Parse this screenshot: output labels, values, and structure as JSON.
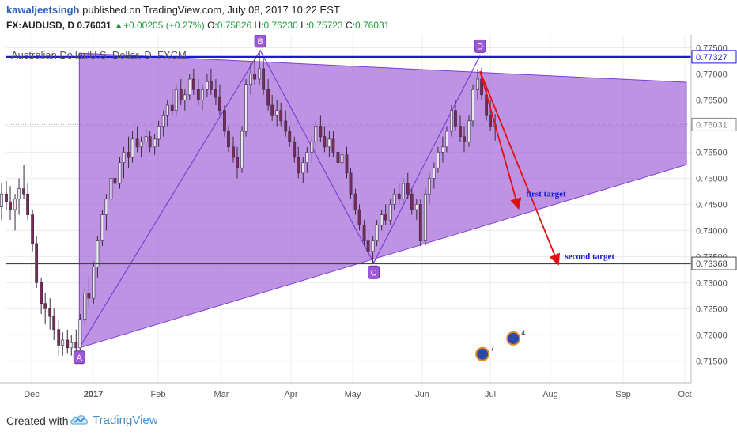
{
  "header": {
    "username": "kawaljeetsingh",
    "published": "published on TradingView.com, July 08, 2017 10:22 EST",
    "symbol": "FX:AUDUSD, D",
    "last_price": "0.76031",
    "change_icon": "up-triangle-icon",
    "change": "+0.00205 (+0.27%)",
    "o_label": "O:",
    "o_value": "0.75826",
    "h_label": "H:",
    "h_value": "0.76230",
    "l_label": "L:",
    "l_value": "0.75723",
    "c_label": "C:",
    "c_value": "0.76031"
  },
  "footer": {
    "created_with": "Created with",
    "brand": "TradingView",
    "logo_icon": "tradingview-cloud-icon"
  },
  "chart_data": {
    "type": "candlestick",
    "title": "Australian Dollar/U.S. Dollar, D, FXCM",
    "x_tick_labels": [
      "Dec",
      "2017",
      "Feb",
      "Mar",
      "Apr",
      "May",
      "Jun",
      "Jul",
      "Aug",
      "Sep",
      "Oct"
    ],
    "y_tick_labels": [
      "0.77500",
      "0.77000",
      "0.76500",
      "0.76000",
      "0.75500",
      "0.75000",
      "0.74500",
      "0.74000",
      "0.73500",
      "0.73000",
      "0.72500",
      "0.72000",
      "0.71500"
    ],
    "y_ticks": [
      0.775,
      0.77,
      0.765,
      0.76,
      0.755,
      0.75,
      0.745,
      0.74,
      0.735,
      0.73,
      0.725,
      0.72,
      0.715
    ],
    "ylim": [
      0.7108,
      0.7775
    ],
    "grid": true,
    "colors": {
      "up": "#e8e8f0",
      "down": "#7a2a58",
      "wick": "#3a2a40",
      "pattern_fill": "#9b59d6",
      "pattern_line": "#7d3fd4",
      "hline_top": "#1a1ad4",
      "hline_bottom": "#444444",
      "arrow": "#e01010",
      "label_text": "#1a1ad4",
      "last_price_line": "#aaaaaa"
    },
    "price_labels": [
      {
        "value": 0.77327,
        "text": "0.77327",
        "color": "#1a1ad4"
      },
      {
        "value": 0.76031,
        "text": "0.76031",
        "color": "#888888"
      },
      {
        "value": 0.73368,
        "text": "0.73368",
        "color": "#444444"
      }
    ],
    "horizontal_lines": [
      {
        "value": 0.77327,
        "color": "#1a1ad4"
      },
      {
        "value": 0.73368,
        "color": "#444444"
      }
    ],
    "abcd_points": [
      {
        "label": "A",
        "t": 2016.985,
        "price": 0.7175
      },
      {
        "label": "B",
        "t": 2017.213,
        "price": 0.7745
      },
      {
        "label": "C",
        "t": 2017.356,
        "price": 0.7338
      },
      {
        "label": "D",
        "t": 2017.49,
        "price": 0.7735
      }
    ],
    "pattern_triangle": [
      {
        "t": 2016.985,
        "price": 0.774
      },
      {
        "t": 2017.75,
        "price": 0.7684
      },
      {
        "t": 2017.75,
        "price": 0.7526
      },
      {
        "t": 2016.985,
        "price": 0.7175
      }
    ],
    "arrows": [
      {
        "from_t": 2017.49,
        "from_price": 0.7705,
        "to_t": 2017.538,
        "to_price": 0.7445
      },
      {
        "from_t": 2017.49,
        "from_price": 0.7705,
        "to_t": 2017.588,
        "to_price": 0.7338
      }
    ],
    "annotations": [
      {
        "text": "first target",
        "t": 2017.548,
        "price": 0.7465
      },
      {
        "text": "second target",
        "t": 2017.597,
        "price": 0.7345
      }
    ],
    "events": [
      {
        "icon": "calendar-event-icon",
        "text": "4",
        "t": 2017.532,
        "price": 0.7193
      },
      {
        "icon": "flag-event-icon",
        "text": "7",
        "t": 2017.493,
        "price": 0.7163
      }
    ],
    "candles_note": "daily candles Nov 2016 - Jul 2017",
    "candles": [
      {
        "t": 2016.838,
        "o": 0.73,
        "h": 0.7345,
        "l": 0.726,
        "c": 0.733
      },
      {
        "t": 2016.843,
        "o": 0.733,
        "h": 0.7395,
        "l": 0.731,
        "c": 0.738
      },
      {
        "t": 2016.849,
        "o": 0.738,
        "h": 0.742,
        "l": 0.735,
        "c": 0.74
      },
      {
        "t": 2016.854,
        "o": 0.74,
        "h": 0.743,
        "l": 0.736,
        "c": 0.7375
      },
      {
        "t": 2016.86,
        "o": 0.7375,
        "h": 0.746,
        "l": 0.7365,
        "c": 0.745
      },
      {
        "t": 2016.865,
        "o": 0.745,
        "h": 0.748,
        "l": 0.741,
        "c": 0.743
      },
      {
        "t": 2016.871,
        "o": 0.743,
        "h": 0.7495,
        "l": 0.742,
        "c": 0.748
      },
      {
        "t": 2016.876,
        "o": 0.748,
        "h": 0.75,
        "l": 0.744,
        "c": 0.746
      },
      {
        "t": 2016.882,
        "o": 0.746,
        "h": 0.75,
        "l": 0.743,
        "c": 0.7445
      },
      {
        "t": 2016.887,
        "o": 0.7445,
        "h": 0.749,
        "l": 0.742,
        "c": 0.747
      },
      {
        "t": 2016.893,
        "o": 0.747,
        "h": 0.7495,
        "l": 0.744,
        "c": 0.7455
      },
      {
        "t": 2016.898,
        "o": 0.7455,
        "h": 0.7485,
        "l": 0.742,
        "c": 0.744
      },
      {
        "t": 2016.904,
        "o": 0.744,
        "h": 0.747,
        "l": 0.74,
        "c": 0.746
      },
      {
        "t": 2016.909,
        "o": 0.746,
        "h": 0.75,
        "l": 0.743,
        "c": 0.748
      },
      {
        "t": 2016.915,
        "o": 0.748,
        "h": 0.7525,
        "l": 0.746,
        "c": 0.747
      },
      {
        "t": 2016.92,
        "o": 0.747,
        "h": 0.749,
        "l": 0.742,
        "c": 0.743
      },
      {
        "t": 2016.926,
        "o": 0.743,
        "h": 0.744,
        "l": 0.736,
        "c": 0.7375
      },
      {
        "t": 2016.931,
        "o": 0.7375,
        "h": 0.739,
        "l": 0.729,
        "c": 0.73
      },
      {
        "t": 2016.937,
        "o": 0.73,
        "h": 0.731,
        "l": 0.724,
        "c": 0.726
      },
      {
        "t": 2016.942,
        "o": 0.726,
        "h": 0.728,
        "l": 0.722,
        "c": 0.725
      },
      {
        "t": 2016.948,
        "o": 0.725,
        "h": 0.727,
        "l": 0.721,
        "c": 0.7235
      },
      {
        "t": 2016.953,
        "o": 0.7235,
        "h": 0.725,
        "l": 0.719,
        "c": 0.721
      },
      {
        "t": 2016.959,
        "o": 0.721,
        "h": 0.723,
        "l": 0.716,
        "c": 0.718
      },
      {
        "t": 2016.964,
        "o": 0.718,
        "h": 0.7205,
        "l": 0.716,
        "c": 0.719
      },
      {
        "t": 2016.97,
        "o": 0.719,
        "h": 0.721,
        "l": 0.7165,
        "c": 0.7175
      },
      {
        "t": 2016.975,
        "o": 0.7175,
        "h": 0.72,
        "l": 0.716,
        "c": 0.7185
      },
      {
        "t": 2016.981,
        "o": 0.7185,
        "h": 0.721,
        "l": 0.7165,
        "c": 0.7175
      },
      {
        "t": 2016.986,
        "o": 0.7175,
        "h": 0.724,
        "l": 0.717,
        "c": 0.723
      },
      {
        "t": 2016.992,
        "o": 0.723,
        "h": 0.729,
        "l": 0.722,
        "c": 0.728
      },
      {
        "t": 2016.997,
        "o": 0.728,
        "h": 0.731,
        "l": 0.725,
        "c": 0.727
      },
      {
        "t": 2017.003,
        "o": 0.727,
        "h": 0.734,
        "l": 0.726,
        "c": 0.733
      },
      {
        "t": 2017.008,
        "o": 0.733,
        "h": 0.739,
        "l": 0.731,
        "c": 0.738
      },
      {
        "t": 2017.014,
        "o": 0.738,
        "h": 0.744,
        "l": 0.737,
        "c": 0.743
      },
      {
        "t": 2017.019,
        "o": 0.743,
        "h": 0.747,
        "l": 0.74,
        "c": 0.746
      },
      {
        "t": 2017.025,
        "o": 0.746,
        "h": 0.751,
        "l": 0.744,
        "c": 0.75
      },
      {
        "t": 2017.03,
        "o": 0.75,
        "h": 0.752,
        "l": 0.747,
        "c": 0.749
      },
      {
        "t": 2017.036,
        "o": 0.749,
        "h": 0.754,
        "l": 0.748,
        "c": 0.753
      },
      {
        "t": 2017.041,
        "o": 0.753,
        "h": 0.756,
        "l": 0.75,
        "c": 0.755
      },
      {
        "t": 2017.047,
        "o": 0.755,
        "h": 0.758,
        "l": 0.752,
        "c": 0.754
      },
      {
        "t": 2017.052,
        "o": 0.754,
        "h": 0.759,
        "l": 0.753,
        "c": 0.7575
      },
      {
        "t": 2017.058,
        "o": 0.7575,
        "h": 0.76,
        "l": 0.755,
        "c": 0.756
      },
      {
        "t": 2017.063,
        "o": 0.756,
        "h": 0.758,
        "l": 0.754,
        "c": 0.757
      },
      {
        "t": 2017.069,
        "o": 0.757,
        "h": 0.7595,
        "l": 0.755,
        "c": 0.758
      },
      {
        "t": 2017.074,
        "o": 0.758,
        "h": 0.759,
        "l": 0.755,
        "c": 0.756
      },
      {
        "t": 2017.08,
        "o": 0.756,
        "h": 0.7585,
        "l": 0.7545,
        "c": 0.7575
      },
      {
        "t": 2017.085,
        "o": 0.7575,
        "h": 0.761,
        "l": 0.756,
        "c": 0.76
      },
      {
        "t": 2017.091,
        "o": 0.76,
        "h": 0.763,
        "l": 0.758,
        "c": 0.762
      },
      {
        "t": 2017.096,
        "o": 0.762,
        "h": 0.765,
        "l": 0.76,
        "c": 0.764
      },
      {
        "t": 2017.102,
        "o": 0.764,
        "h": 0.767,
        "l": 0.762,
        "c": 0.763
      },
      {
        "t": 2017.107,
        "o": 0.763,
        "h": 0.768,
        "l": 0.762,
        "c": 0.767
      },
      {
        "t": 2017.113,
        "o": 0.767,
        "h": 0.769,
        "l": 0.764,
        "c": 0.765
      },
      {
        "t": 2017.118,
        "o": 0.765,
        "h": 0.767,
        "l": 0.763,
        "c": 0.766
      },
      {
        "t": 2017.124,
        "o": 0.766,
        "h": 0.77,
        "l": 0.765,
        "c": 0.769
      },
      {
        "t": 2017.129,
        "o": 0.769,
        "h": 0.771,
        "l": 0.766,
        "c": 0.767
      },
      {
        "t": 2017.135,
        "o": 0.767,
        "h": 0.769,
        "l": 0.764,
        "c": 0.765
      },
      {
        "t": 2017.14,
        "o": 0.765,
        "h": 0.768,
        "l": 0.763,
        "c": 0.767
      },
      {
        "t": 2017.146,
        "o": 0.767,
        "h": 0.77,
        "l": 0.7655,
        "c": 0.7685
      },
      {
        "t": 2017.151,
        "o": 0.7685,
        "h": 0.771,
        "l": 0.766,
        "c": 0.767
      },
      {
        "t": 2017.157,
        "o": 0.767,
        "h": 0.769,
        "l": 0.764,
        "c": 0.7655
      },
      {
        "t": 2017.162,
        "o": 0.7655,
        "h": 0.768,
        "l": 0.762,
        "c": 0.763
      },
      {
        "t": 2017.168,
        "o": 0.763,
        "h": 0.764,
        "l": 0.758,
        "c": 0.759
      },
      {
        "t": 2017.173,
        "o": 0.759,
        "h": 0.76,
        "l": 0.755,
        "c": 0.756
      },
      {
        "t": 2017.179,
        "o": 0.756,
        "h": 0.758,
        "l": 0.753,
        "c": 0.754
      },
      {
        "t": 2017.184,
        "o": 0.754,
        "h": 0.756,
        "l": 0.75,
        "c": 0.752
      },
      {
        "t": 2017.19,
        "o": 0.752,
        "h": 0.76,
        "l": 0.751,
        "c": 0.759
      },
      {
        "t": 2017.195,
        "o": 0.759,
        "h": 0.769,
        "l": 0.758,
        "c": 0.768
      },
      {
        "t": 2017.201,
        "o": 0.768,
        "h": 0.772,
        "l": 0.766,
        "c": 0.77
      },
      {
        "t": 2017.206,
        "o": 0.77,
        "h": 0.773,
        "l": 0.768,
        "c": 0.769
      },
      {
        "t": 2017.212,
        "o": 0.769,
        "h": 0.7745,
        "l": 0.768,
        "c": 0.771
      },
      {
        "t": 2017.217,
        "o": 0.771,
        "h": 0.773,
        "l": 0.766,
        "c": 0.767
      },
      {
        "t": 2017.223,
        "o": 0.767,
        "h": 0.769,
        "l": 0.763,
        "c": 0.764
      },
      {
        "t": 2017.228,
        "o": 0.764,
        "h": 0.766,
        "l": 0.761,
        "c": 0.762
      },
      {
        "t": 2017.234,
        "o": 0.762,
        "h": 0.765,
        "l": 0.76,
        "c": 0.763
      },
      {
        "t": 2017.239,
        "o": 0.763,
        "h": 0.7645,
        "l": 0.76,
        "c": 0.761
      },
      {
        "t": 2017.245,
        "o": 0.761,
        "h": 0.763,
        "l": 0.758,
        "c": 0.759
      },
      {
        "t": 2017.25,
        "o": 0.759,
        "h": 0.76,
        "l": 0.756,
        "c": 0.757
      },
      {
        "t": 2017.256,
        "o": 0.757,
        "h": 0.758,
        "l": 0.753,
        "c": 0.754
      },
      {
        "t": 2017.261,
        "o": 0.754,
        "h": 0.756,
        "l": 0.75,
        "c": 0.751
      },
      {
        "t": 2017.267,
        "o": 0.751,
        "h": 0.754,
        "l": 0.749,
        "c": 0.753
      },
      {
        "t": 2017.272,
        "o": 0.753,
        "h": 0.756,
        "l": 0.751,
        "c": 0.755
      },
      {
        "t": 2017.278,
        "o": 0.755,
        "h": 0.758,
        "l": 0.753,
        "c": 0.757
      },
      {
        "t": 2017.283,
        "o": 0.757,
        "h": 0.761,
        "l": 0.755,
        "c": 0.76
      },
      {
        "t": 2017.289,
        "o": 0.76,
        "h": 0.762,
        "l": 0.757,
        "c": 0.758
      },
      {
        "t": 2017.294,
        "o": 0.758,
        "h": 0.76,
        "l": 0.755,
        "c": 0.756
      },
      {
        "t": 2017.3,
        "o": 0.756,
        "h": 0.759,
        "l": 0.754,
        "c": 0.7575
      },
      {
        "t": 2017.305,
        "o": 0.7575,
        "h": 0.759,
        "l": 0.754,
        "c": 0.755
      },
      {
        "t": 2017.311,
        "o": 0.755,
        "h": 0.757,
        "l": 0.752,
        "c": 0.753
      },
      {
        "t": 2017.316,
        "o": 0.753,
        "h": 0.756,
        "l": 0.751,
        "c": 0.7545
      },
      {
        "t": 2017.322,
        "o": 0.7545,
        "h": 0.756,
        "l": 0.75,
        "c": 0.751
      },
      {
        "t": 2017.327,
        "o": 0.751,
        "h": 0.752,
        "l": 0.746,
        "c": 0.747
      },
      {
        "t": 2017.333,
        "o": 0.747,
        "h": 0.748,
        "l": 0.743,
        "c": 0.744
      },
      {
        "t": 2017.338,
        "o": 0.744,
        "h": 0.745,
        "l": 0.74,
        "c": 0.741
      },
      {
        "t": 2017.344,
        "o": 0.741,
        "h": 0.742,
        "l": 0.737,
        "c": 0.738
      },
      {
        "t": 2017.349,
        "o": 0.738,
        "h": 0.74,
        "l": 0.735,
        "c": 0.736
      },
      {
        "t": 2017.355,
        "o": 0.736,
        "h": 0.739,
        "l": 0.7338,
        "c": 0.738
      },
      {
        "t": 2017.36,
        "o": 0.738,
        "h": 0.742,
        "l": 0.737,
        "c": 0.741
      },
      {
        "t": 2017.366,
        "o": 0.741,
        "h": 0.744,
        "l": 0.74,
        "c": 0.743
      },
      {
        "t": 2017.371,
        "o": 0.743,
        "h": 0.745,
        "l": 0.741,
        "c": 0.742
      },
      {
        "t": 2017.377,
        "o": 0.742,
        "h": 0.746,
        "l": 0.741,
        "c": 0.745
      },
      {
        "t": 2017.382,
        "o": 0.745,
        "h": 0.748,
        "l": 0.744,
        "c": 0.747
      },
      {
        "t": 2017.388,
        "o": 0.747,
        "h": 0.749,
        "l": 0.745,
        "c": 0.746
      },
      {
        "t": 2017.393,
        "o": 0.746,
        "h": 0.75,
        "l": 0.745,
        "c": 0.749
      },
      {
        "t": 2017.399,
        "o": 0.749,
        "h": 0.751,
        "l": 0.746,
        "c": 0.747
      },
      {
        "t": 2017.404,
        "o": 0.747,
        "h": 0.748,
        "l": 0.743,
        "c": 0.744
      },
      {
        "t": 2017.41,
        "o": 0.744,
        "h": 0.746,
        "l": 0.742,
        "c": 0.745
      },
      {
        "t": 2017.415,
        "o": 0.745,
        "h": 0.746,
        "l": 0.737,
        "c": 0.738
      },
      {
        "t": 2017.421,
        "o": 0.738,
        "h": 0.748,
        "l": 0.737,
        "c": 0.747
      },
      {
        "t": 2017.426,
        "o": 0.747,
        "h": 0.751,
        "l": 0.745,
        "c": 0.75
      },
      {
        "t": 2017.432,
        "o": 0.75,
        "h": 0.753,
        "l": 0.748,
        "c": 0.752
      },
      {
        "t": 2017.437,
        "o": 0.752,
        "h": 0.756,
        "l": 0.751,
        "c": 0.755
      },
      {
        "t": 2017.443,
        "o": 0.755,
        "h": 0.758,
        "l": 0.753,
        "c": 0.756
      },
      {
        "t": 2017.448,
        "o": 0.756,
        "h": 0.76,
        "l": 0.755,
        "c": 0.759
      },
      {
        "t": 2017.454,
        "o": 0.759,
        "h": 0.764,
        "l": 0.758,
        "c": 0.763
      },
      {
        "t": 2017.459,
        "o": 0.763,
        "h": 0.765,
        "l": 0.759,
        "c": 0.76
      },
      {
        "t": 2017.465,
        "o": 0.76,
        "h": 0.762,
        "l": 0.757,
        "c": 0.758
      },
      {
        "t": 2017.47,
        "o": 0.758,
        "h": 0.76,
        "l": 0.755,
        "c": 0.757
      },
      {
        "t": 2017.476,
        "o": 0.757,
        "h": 0.762,
        "l": 0.756,
        "c": 0.761
      },
      {
        "t": 2017.481,
        "o": 0.761,
        "h": 0.768,
        "l": 0.76,
        "c": 0.767
      },
      {
        "t": 2017.487,
        "o": 0.767,
        "h": 0.771,
        "l": 0.765,
        "c": 0.769
      },
      {
        "t": 2017.492,
        "o": 0.769,
        "h": 0.7712,
        "l": 0.765,
        "c": 0.766
      },
      {
        "t": 2017.498,
        "o": 0.766,
        "h": 0.768,
        "l": 0.761,
        "c": 0.762
      },
      {
        "t": 2017.503,
        "o": 0.762,
        "h": 0.765,
        "l": 0.759,
        "c": 0.76
      },
      {
        "t": 2017.509,
        "o": 0.76,
        "h": 0.7623,
        "l": 0.7572,
        "c": 0.7603
      }
    ]
  }
}
